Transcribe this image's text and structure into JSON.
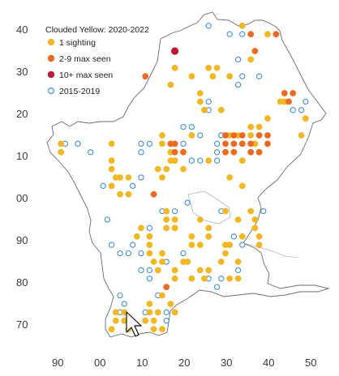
{
  "legend": {
    "title": "Clouded Yellow:  2020-2022",
    "items": [
      {
        "label": "1 sighting",
        "fill": "#f2b724",
        "stroke": "#f2b724",
        "hollow": false
      },
      {
        "label": "2-9 max seen",
        "fill": "#ec6a22",
        "stroke": "#ec6a22",
        "hollow": false
      },
      {
        "label": "10+ max seen",
        "fill": "#c0163a",
        "stroke": "#c0163a",
        "hollow": false
      },
      {
        "label": "2015-2019",
        "fill": "#ffffff",
        "stroke": "#3d8fd1",
        "hollow": true
      }
    ]
  },
  "colors": {
    "one": "#f2b724",
    "few": "#ec6a22",
    "many": "#c0163a",
    "old": "#3d8fd1",
    "outline": "#6b6b6b"
  },
  "axes": {
    "x_ticks": [
      "90",
      "00",
      "10",
      "20",
      "30",
      "40",
      "50"
    ],
    "y_ticks": [
      "40",
      "30",
      "20",
      "10",
      "00",
      "90",
      "80",
      "70"
    ]
  },
  "chart_data": {
    "type": "scatter",
    "title": "Clouded Yellow:  2020-2022",
    "xlabel": "",
    "ylabel": "",
    "x_tick_labels": [
      "90",
      "00",
      "10",
      "20",
      "30",
      "40",
      "50"
    ],
    "y_tick_labels": [
      "40",
      "30",
      "20",
      "10",
      "00",
      "90",
      "80",
      "70"
    ],
    "grid": false,
    "legend_position": "top-left",
    "series": [
      {
        "name": "1 sighting",
        "points": [
          [
            34,
            41
          ],
          [
            40,
            39
          ],
          [
            36,
            33
          ],
          [
            18,
            31
          ],
          [
            26,
            31
          ],
          [
            28,
            31
          ],
          [
            22,
            29
          ],
          [
            31,
            29
          ],
          [
            17,
            27
          ],
          [
            27,
            29
          ],
          [
            24,
            25
          ],
          [
            24,
            23
          ],
          [
            25,
            21
          ],
          [
            29,
            21
          ],
          [
            49,
            19
          ],
          [
            40,
            19
          ],
          [
            43,
            23
          ],
          [
            44,
            23
          ],
          [
            15,
            15
          ],
          [
            15,
            13
          ],
          [
            22,
            15
          ],
          [
            36,
            17
          ],
          [
            38,
            17
          ],
          [
            36,
            15
          ],
          [
            37,
            13
          ],
          [
            48,
            15
          ],
          [
            31,
            15
          ],
          [
            33,
            15
          ],
          [
            17,
            11
          ],
          [
            17,
            9
          ],
          [
            18,
            9
          ],
          [
            16,
            7
          ],
          [
            14,
            7
          ],
          [
            15,
            5
          ],
          [
            20,
            7
          ],
          [
            26,
            9
          ],
          [
            34,
            9
          ],
          [
            34,
            3
          ],
          [
            38,
            11
          ],
          [
            31,
            5
          ],
          [
            91,
            13
          ],
          [
            91,
            11
          ],
          [
            3,
            13
          ],
          [
            3,
            9
          ],
          [
            3,
            7
          ],
          [
            4,
            5
          ],
          [
            5,
            5
          ],
          [
            7,
            5
          ],
          [
            3,
            3
          ],
          [
            5,
            1
          ],
          [
            7,
            1
          ],
          [
            16,
            97
          ],
          [
            16,
            95
          ],
          [
            18,
            95
          ],
          [
            16,
            93
          ],
          [
            18,
            93
          ],
          [
            24,
            95
          ],
          [
            22,
            91
          ],
          [
            22,
            89
          ],
          [
            24,
            89
          ],
          [
            26,
            91
          ],
          [
            26,
            93
          ],
          [
            30,
            97
          ],
          [
            33,
            95
          ],
          [
            34,
            91
          ],
          [
            30,
            89
          ],
          [
            31,
            89
          ],
          [
            30,
            87
          ],
          [
            29,
            85
          ],
          [
            36,
            97
          ],
          [
            37,
            95
          ],
          [
            37,
            93
          ],
          [
            38,
            91
          ],
          [
            38,
            89
          ],
          [
            10,
            93
          ],
          [
            12,
            91
          ],
          [
            12,
            89
          ],
          [
            9,
            91
          ],
          [
            12,
            87
          ],
          [
            15,
            87
          ],
          [
            13,
            85
          ],
          [
            15,
            85
          ],
          [
            14,
            83
          ],
          [
            18,
            83
          ],
          [
            20,
            85
          ],
          [
            21,
            85
          ],
          [
            18,
            81
          ],
          [
            22,
            81
          ],
          [
            24,
            83
          ],
          [
            25,
            81
          ],
          [
            26,
            83
          ],
          [
            31,
            81
          ],
          [
            33,
            85
          ],
          [
            33,
            81
          ],
          [
            15,
            77
          ],
          [
            17,
            75
          ],
          [
            4,
            73
          ],
          [
            4,
            71
          ],
          [
            6,
            73
          ],
          [
            6,
            71
          ],
          [
            7,
            69
          ],
          [
            3,
            69
          ],
          [
            12,
            75
          ],
          [
            12,
            73
          ],
          [
            14,
            73
          ],
          [
            11,
            71
          ],
          [
            13,
            71
          ],
          [
            13,
            69
          ],
          [
            15,
            69
          ],
          [
            18,
            73
          ]
        ]
      },
      {
        "name": "2-9 max seen",
        "points": [
          [
            36,
            39
          ],
          [
            42,
            39
          ],
          [
            37,
            35
          ],
          [
            11,
            29
          ],
          [
            44,
            25
          ],
          [
            46,
            25
          ],
          [
            45,
            23
          ],
          [
            30,
            15
          ],
          [
            32,
            15
          ],
          [
            34,
            15
          ],
          [
            38,
            15
          ],
          [
            40,
            15
          ],
          [
            40,
            13
          ],
          [
            36,
            13
          ],
          [
            34,
            13
          ],
          [
            32,
            13
          ],
          [
            30,
            13
          ],
          [
            30,
            11
          ],
          [
            32,
            11
          ],
          [
            36,
            11
          ],
          [
            38,
            11
          ],
          [
            17,
            13
          ],
          [
            18,
            11
          ],
          [
            20,
            11
          ],
          [
            18,
            13
          ],
          [
            13,
            1
          ],
          [
            16,
            79
          ]
        ]
      },
      {
        "name": "10+ max seen",
        "points": [
          [
            18,
            35
          ]
        ]
      },
      {
        "name": "2015-2019",
        "points": [
          [
            26,
            41
          ],
          [
            31,
            39
          ],
          [
            34,
            39
          ],
          [
            33,
            33
          ],
          [
            33,
            27
          ],
          [
            34,
            29
          ],
          [
            38,
            29
          ],
          [
            26,
            23
          ],
          [
            26,
            21
          ],
          [
            46,
            21
          ],
          [
            48,
            21
          ],
          [
            49,
            23
          ],
          [
            10,
            13
          ],
          [
            12,
            13
          ],
          [
            20,
            13
          ],
          [
            20,
            17
          ],
          [
            22,
            17
          ],
          [
            24,
            15
          ],
          [
            22,
            9
          ],
          [
            24,
            9
          ],
          [
            28,
            9
          ],
          [
            28,
            11
          ],
          [
            29,
            15
          ],
          [
            28,
            13
          ],
          [
            92,
            13
          ],
          [
            95,
            13
          ],
          [
            98,
            11
          ],
          [
            10,
            11
          ],
          [
            1,
            3
          ],
          [
            8,
            3
          ],
          [
            10,
            5
          ],
          [
            2,
            95
          ],
          [
            15,
            97
          ],
          [
            18,
            97
          ],
          [
            3,
            89
          ],
          [
            5,
            87
          ],
          [
            7,
            87
          ],
          [
            8,
            89
          ],
          [
            10,
            87
          ],
          [
            12,
            93
          ],
          [
            21,
            99
          ],
          [
            29,
            97
          ],
          [
            32,
            91
          ],
          [
            37,
            93
          ],
          [
            39,
            97
          ],
          [
            29,
            81
          ],
          [
            33,
            83
          ],
          [
            28,
            79
          ],
          [
            34,
            89
          ],
          [
            10,
            83
          ],
          [
            12,
            83
          ],
          [
            12,
            81
          ],
          [
            20,
            87
          ],
          [
            16,
            85
          ],
          [
            24,
            83
          ],
          [
            26,
            81
          ],
          [
            5,
            77
          ],
          [
            6,
            75
          ],
          [
            5,
            73
          ],
          [
            12,
            75
          ],
          [
            14,
            77
          ],
          [
            16,
            73
          ],
          [
            16,
            71
          ],
          [
            11,
            73
          ]
        ]
      }
    ]
  }
}
